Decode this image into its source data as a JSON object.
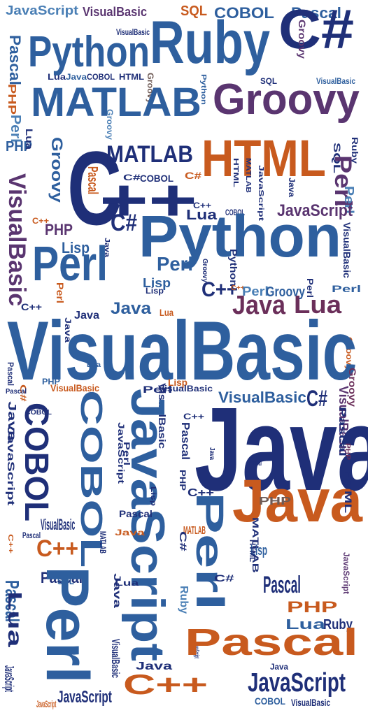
{
  "palette": {
    "blue": "#2e5f9e",
    "navy": "#1f2f78",
    "steel": "#4a7fb5",
    "purple": "#5a3570",
    "orange": "#c85a1e",
    "brown": "#6e5a55",
    "plum": "#6b2f5a"
  },
  "words": [
    {
      "t": "JavaScript",
      "c": "steel"
    },
    {
      "t": "VisualBasic",
      "c": "purple"
    },
    {
      "t": "SQL",
      "c": "orange"
    },
    {
      "t": "COBOL",
      "c": "blue"
    },
    {
      "t": "Pascal",
      "c": "blue"
    },
    {
      "t": "C#",
      "c": "navy"
    },
    {
      "t": "Python",
      "c": "blue"
    },
    {
      "t": "Ruby",
      "c": "blue"
    },
    {
      "t": "VisualBasic",
      "c": "navy"
    },
    {
      "t": "Groovy",
      "c": "purple"
    },
    {
      "t": "Pascal",
      "c": "blue"
    },
    {
      "t": "Lua",
      "c": "navy"
    },
    {
      "t": "Java",
      "c": "blue"
    },
    {
      "t": "COBOL",
      "c": "navy"
    },
    {
      "t": "HTML",
      "c": "navy"
    },
    {
      "t": "Groovy",
      "c": "brown"
    },
    {
      "t": "Python",
      "c": "blue"
    },
    {
      "t": "SQL",
      "c": "navy"
    },
    {
      "t": "VisualBasic",
      "c": "blue"
    },
    {
      "t": "MATLAB",
      "c": "blue"
    },
    {
      "t": "Groovy",
      "c": "purple"
    },
    {
      "t": "PHP",
      "c": "orange"
    },
    {
      "t": "Perl",
      "c": "steel"
    },
    {
      "t": "PHP",
      "c": "blue"
    },
    {
      "t": "Groovy",
      "c": "blue"
    },
    {
      "t": "Lua",
      "c": "navy"
    },
    {
      "t": "Groovy",
      "c": "steel"
    },
    {
      "t": "Ruby",
      "c": "navy"
    },
    {
      "t": "C",
      "c": "navy"
    },
    {
      "t": "MATLAB",
      "c": "navy"
    },
    {
      "t": "HTML",
      "c": "orange"
    },
    {
      "t": "SQL",
      "c": "navy"
    },
    {
      "t": "Pascal",
      "c": "orange"
    },
    {
      "t": "C#",
      "c": "navy"
    },
    {
      "t": "COBOL",
      "c": "navy"
    },
    {
      "t": "C#",
      "c": "orange"
    },
    {
      "t": "++",
      "c": "navy"
    },
    {
      "t": "Perl",
      "c": "purple"
    },
    {
      "t": "VisualBasic",
      "c": "purple"
    },
    {
      "t": "HTML",
      "c": "navy"
    },
    {
      "t": "MATLAB",
      "c": "navy"
    },
    {
      "t": "JavaScript",
      "c": "navy"
    },
    {
      "t": "Java",
      "c": "navy"
    },
    {
      "t": "C++",
      "c": "navy"
    },
    {
      "t": "Lua",
      "c": "navy"
    },
    {
      "t": "COBOL",
      "c": "navy"
    },
    {
      "t": "Perl",
      "c": "steel"
    },
    {
      "t": "JavaScript",
      "c": "purple"
    },
    {
      "t": "C++",
      "c": "orange"
    },
    {
      "t": "C#",
      "c": "navy"
    },
    {
      "t": "PHP",
      "c": "purple"
    },
    {
      "t": "Lisp",
      "c": "blue"
    },
    {
      "t": "Java",
      "c": "navy"
    },
    {
      "t": "Python",
      "c": "blue"
    },
    {
      "t": "VisualBasic",
      "c": "navy"
    },
    {
      "t": "Perl",
      "c": "blue"
    },
    {
      "t": "Lisp",
      "c": "blue"
    },
    {
      "t": "Perl",
      "c": "blue"
    },
    {
      "t": "Groovy",
      "c": "navy"
    },
    {
      "t": "Python",
      "c": "navy"
    },
    {
      "t": "C++",
      "c": "navy"
    },
    {
      "t": "C++",
      "c": "orange"
    },
    {
      "t": "Perl",
      "c": "steel"
    },
    {
      "t": "Groovy",
      "c": "blue"
    },
    {
      "t": "Perl",
      "c": "navy"
    },
    {
      "t": "Lisp",
      "c": "navy"
    },
    {
      "t": "Perl",
      "c": "blue"
    },
    {
      "t": "Perl",
      "c": "orange"
    },
    {
      "t": "C++",
      "c": "navy"
    },
    {
      "t": "Java",
      "c": "navy"
    },
    {
      "t": "Java",
      "c": "blue"
    },
    {
      "t": "Lua",
      "c": "orange"
    },
    {
      "t": "Java",
      "c": "plum"
    },
    {
      "t": "Lua",
      "c": "plum"
    },
    {
      "t": "Groovy",
      "c": "orange"
    },
    {
      "t": "Java",
      "c": "navy"
    },
    {
      "t": "VisualBasic",
      "c": "blue"
    },
    {
      "t": "Pascal",
      "c": "navy"
    },
    {
      "t": "Lua",
      "c": "blue"
    },
    {
      "t": "Groovy",
      "c": "plum"
    },
    {
      "t": "Lisp",
      "c": "orange"
    },
    {
      "t": "PHP",
      "c": "blue"
    },
    {
      "t": "C#",
      "c": "orange"
    },
    {
      "t": "VisualBasic",
      "c": "orange"
    },
    {
      "t": "Perl",
      "c": "navy"
    },
    {
      "t": "VisualBasic",
      "c": "navy"
    },
    {
      "t": "VisualBasic",
      "c": "blue"
    },
    {
      "t": "C#",
      "c": "navy"
    },
    {
      "t": "VisualBasic",
      "c": "purple"
    },
    {
      "t": "Pascal",
      "c": "navy"
    },
    {
      "t": "Java",
      "c": "navy"
    },
    {
      "t": "JavaScript",
      "c": "navy"
    },
    {
      "t": "COBOL",
      "c": "navy"
    },
    {
      "t": "COBOL",
      "c": "navy"
    },
    {
      "t": "COBOL",
      "c": "blue"
    },
    {
      "t": "VisualBasic",
      "c": "navy"
    },
    {
      "t": "JavaScript",
      "c": "blue"
    },
    {
      "t": "C++",
      "c": "navy"
    },
    {
      "t": "Pascal",
      "c": "navy"
    },
    {
      "t": "Java",
      "c": "navy"
    },
    {
      "t": "PHP",
      "c": "plum"
    },
    {
      "t": "Pascal",
      "c": "navy"
    },
    {
      "t": "JavaScript",
      "c": "navy"
    },
    {
      "t": "Perl",
      "c": "navy"
    },
    {
      "t": "Java",
      "c": "navy"
    },
    {
      "t": "Lisp",
      "c": "navy"
    },
    {
      "t": "Pascal",
      "c": "navy"
    },
    {
      "t": "PHP",
      "c": "navy"
    },
    {
      "t": "C++",
      "c": "navy"
    },
    {
      "t": "Java",
      "c": "orange"
    },
    {
      "t": "PHP",
      "c": "brown"
    },
    {
      "t": "HTML",
      "c": "navy"
    },
    {
      "t": "MATLAB",
      "c": "navy"
    },
    {
      "t": "VisualBasic",
      "c": "navy"
    },
    {
      "t": "C++",
      "c": "orange"
    },
    {
      "t": "Perl",
      "c": "blue"
    },
    {
      "t": "Pascal",
      "c": "navy"
    },
    {
      "t": "C++",
      "c": "orange"
    },
    {
      "t": "Pascal",
      "c": "navy"
    },
    {
      "t": "Java",
      "c": "orange"
    },
    {
      "t": "MATLAB",
      "c": "orange"
    },
    {
      "t": "C#",
      "c": "navy"
    },
    {
      "t": "Lisp",
      "c": "blue"
    },
    {
      "t": "Pascal",
      "c": "navy"
    },
    {
      "t": "HTML",
      "c": "navy"
    },
    {
      "t": "Pascal",
      "c": "navy"
    },
    {
      "t": "MATLAB",
      "c": "navy"
    },
    {
      "t": "Lua",
      "c": "navy"
    },
    {
      "t": "Ruby",
      "c": "steel"
    },
    {
      "t": "C#",
      "c": "navy"
    },
    {
      "t": "JavaScript",
      "c": "purple"
    },
    {
      "t": "PHP",
      "c": "orange"
    },
    {
      "t": "SQL",
      "c": "blue"
    },
    {
      "t": "Perl",
      "c": "blue"
    },
    {
      "t": "Pascal",
      "c": "blue"
    },
    {
      "t": "Lua",
      "c": "navy"
    },
    {
      "t": "JavaScript",
      "c": "navy"
    },
    {
      "t": "Java",
      "c": "navy"
    },
    {
      "t": "Lua",
      "c": "blue"
    },
    {
      "t": "Ruby",
      "c": "navy"
    },
    {
      "t": "JavaScript",
      "c": "navy"
    },
    {
      "t": "Pascal",
      "c": "orange"
    },
    {
      "t": "Java",
      "c": "navy"
    },
    {
      "t": "VisualBasic",
      "c": "navy"
    },
    {
      "t": "Java",
      "c": "navy"
    },
    {
      "t": "JavaScript",
      "c": "navy"
    },
    {
      "t": "C++",
      "c": "orange"
    },
    {
      "t": "COBOL",
      "c": "blue"
    },
    {
      "t": "VisualBasic",
      "c": "navy"
    },
    {
      "t": "JavaScript",
      "c": "orange"
    },
    {
      "t": "JavaScript",
      "c": "navy"
    }
  ]
}
